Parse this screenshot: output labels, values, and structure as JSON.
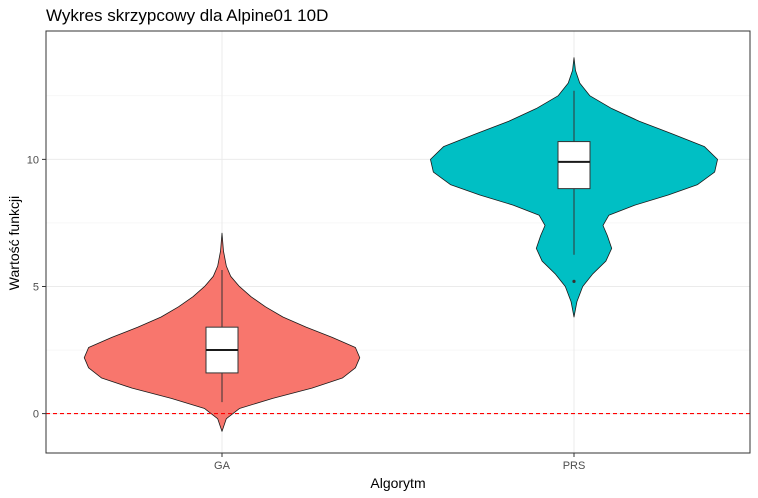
{
  "chart_data": {
    "type": "violin",
    "title": "Wykres skrzypcowy dla Alpine01 10D",
    "xlabel": "Algorytm",
    "ylabel": "Wartość funkcji",
    "ylim": [
      -1.55,
      15.05
    ],
    "yticks": [
      0,
      5,
      10
    ],
    "grid": true,
    "legend": "none",
    "reference_line": {
      "y": 0,
      "color": "#ff0000",
      "style": "dashed"
    },
    "categories": [
      "GA",
      "PRS"
    ],
    "series": [
      {
        "category": "GA",
        "color": "#F8766D",
        "y_min": -0.7,
        "y_max": 7.1,
        "density_profile": [
          [
            -0.7,
            0.0
          ],
          [
            -0.2,
            0.03
          ],
          [
            0.2,
            0.12
          ],
          [
            0.6,
            0.35
          ],
          [
            1.0,
            0.62
          ],
          [
            1.4,
            0.83
          ],
          [
            1.8,
            0.92
          ],
          [
            2.2,
            0.95
          ],
          [
            2.6,
            0.92
          ],
          [
            3.0,
            0.76
          ],
          [
            3.4,
            0.58
          ],
          [
            3.8,
            0.42
          ],
          [
            4.2,
            0.3
          ],
          [
            4.6,
            0.2
          ],
          [
            5.0,
            0.12
          ],
          [
            5.4,
            0.06
          ],
          [
            5.8,
            0.03
          ],
          [
            6.4,
            0.01
          ],
          [
            7.1,
            0.0
          ]
        ],
        "box": {
          "q1": 1.6,
          "median": 2.5,
          "q3": 3.4,
          "whisker_low": 0.45,
          "whisker_high": 5.65
        }
      },
      {
        "category": "PRS",
        "color": "#00BFC4",
        "y_min": 3.8,
        "y_max": 14.0,
        "density_profile": [
          [
            3.8,
            0.0
          ],
          [
            4.4,
            0.02
          ],
          [
            5.0,
            0.06
          ],
          [
            5.5,
            0.13
          ],
          [
            6.0,
            0.22
          ],
          [
            6.5,
            0.26
          ],
          [
            7.0,
            0.23
          ],
          [
            7.4,
            0.2
          ],
          [
            7.8,
            0.24
          ],
          [
            8.2,
            0.42
          ],
          [
            8.6,
            0.65
          ],
          [
            9.0,
            0.85
          ],
          [
            9.5,
            0.97
          ],
          [
            10.0,
            0.99
          ],
          [
            10.5,
            0.9
          ],
          [
            11.0,
            0.68
          ],
          [
            11.5,
            0.45
          ],
          [
            12.0,
            0.26
          ],
          [
            12.5,
            0.11
          ],
          [
            13.0,
            0.04
          ],
          [
            13.5,
            0.01
          ],
          [
            14.0,
            0.0
          ]
        ],
        "box": {
          "q1": 8.85,
          "median": 9.9,
          "q3": 10.7,
          "whisker_low": 6.25,
          "whisker_high": 12.7
        },
        "outliers": [
          5.2
        ]
      }
    ]
  }
}
